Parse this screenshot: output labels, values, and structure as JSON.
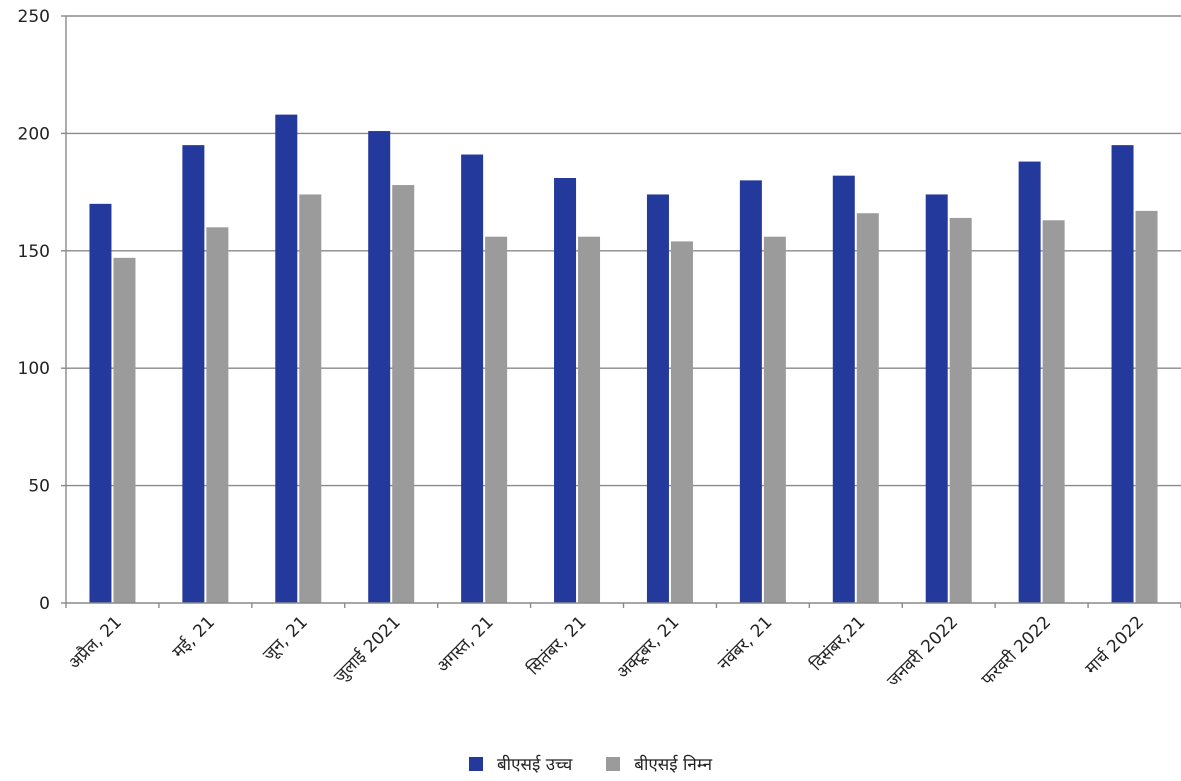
{
  "chart_data": {
    "type": "bar",
    "title": "",
    "xlabel": "",
    "ylabel": "",
    "ylim": [
      0,
      250
    ],
    "yticks": [
      "0",
      "50",
      "100",
      "150",
      "200",
      "250"
    ],
    "grid": true,
    "legend_position": "bottom-center",
    "categories": [
      "अप्रैल, 21",
      "मई, 21",
      "जून, 21",
      "जुलाई 2021",
      "अगस्त, 21",
      "सितंबर, 21",
      "अक्टूबर, 21",
      "नवंबर, 21",
      "दिसंबर,21",
      "जनवरी 2022",
      "फरवरी 2022",
      "मार्च 2022"
    ],
    "series": [
      {
        "name": "बीएसई उच्च",
        "color": "#23399c",
        "values": [
          170,
          195,
          208,
          201,
          191,
          181,
          174,
          180,
          182,
          174,
          188,
          195
        ]
      },
      {
        "name": "बीएसई निम्न",
        "color": "#9b9b9b",
        "values": [
          147,
          160,
          174,
          178,
          156,
          156,
          154,
          156,
          166,
          164,
          163,
          167
        ]
      }
    ]
  }
}
